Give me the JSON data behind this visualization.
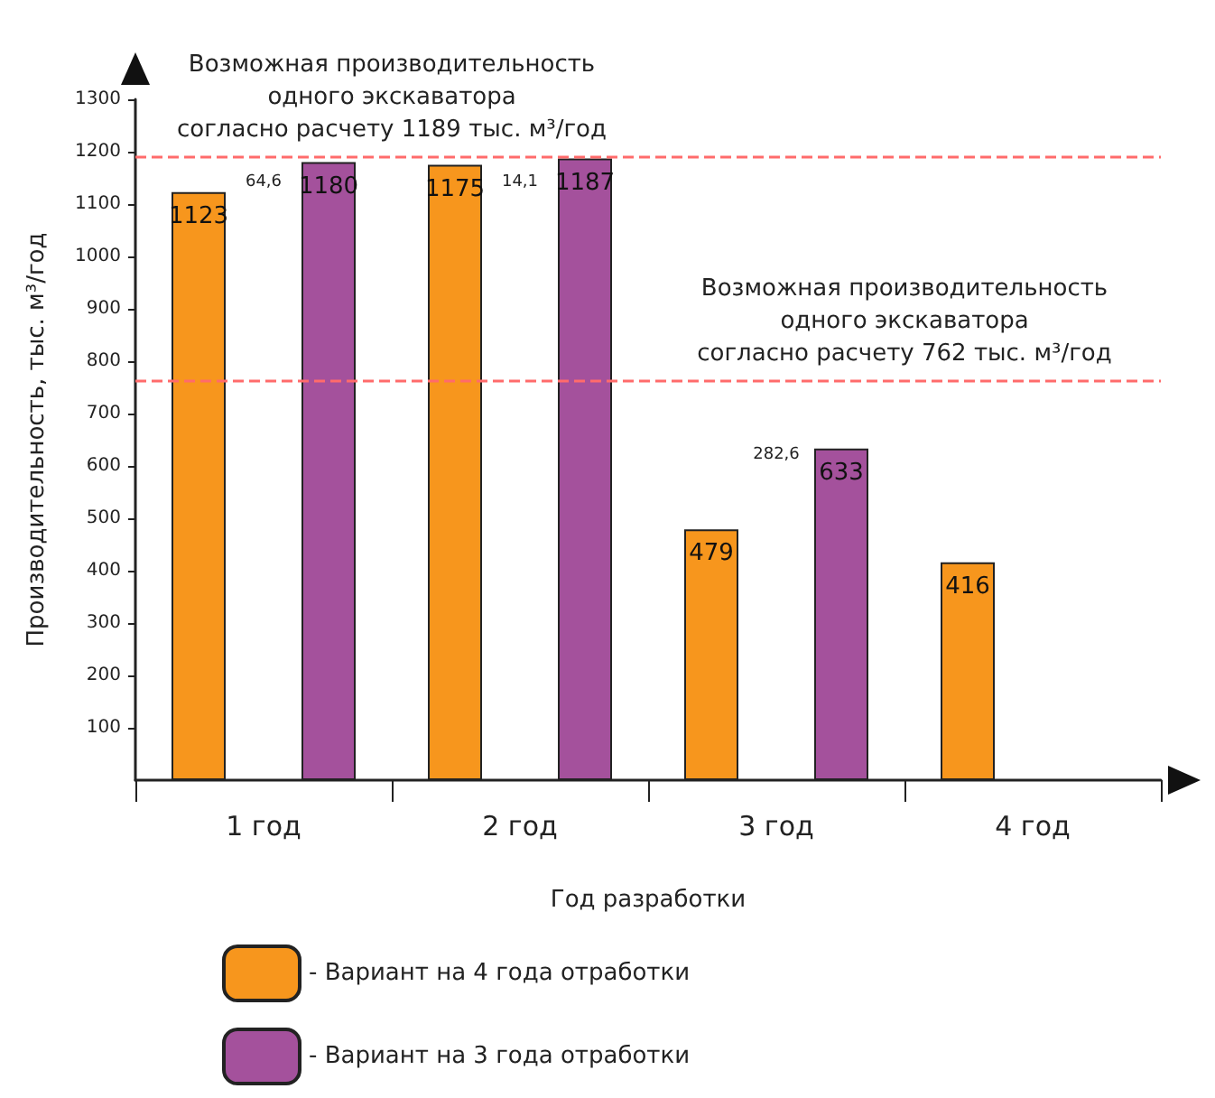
{
  "chart_data": {
    "type": "bar",
    "categories": [
      "1 год",
      "2 год",
      "3 год",
      "4 год"
    ],
    "xlabel": "Год разработки",
    "ylabel": "Производительность, тыс. м³/год",
    "series": [
      {
        "name": "- Вариант на 4 года отработки",
        "color": "#f7961d",
        "values": [
          1123,
          1175,
          479,
          416
        ]
      },
      {
        "name": "- Вариант на 3 года отработки",
        "color": "#a4519c",
        "values": [
          1180,
          1187,
          633,
          null
        ]
      }
    ],
    "ylim": [
      0,
      1300
    ],
    "yticks": [
      100,
      200,
      300,
      400,
      500,
      600,
      700,
      800,
      900,
      1000,
      1100,
      1200,
      1300
    ],
    "ref_lines": [
      {
        "axis": "y",
        "value": 1189,
        "label": "Возможная производительность\nодного экскаватора\nсогласно расчету 1189 тыс. м³/год",
        "color": "#ff6b6b",
        "line_style": "dashed"
      },
      {
        "axis": "y",
        "value": 762,
        "label": "Возможная производительность\nодного экскаватора\nсогласно расчету 762 тыс. м³/год",
        "color": "#ff6b6b",
        "line_style": "dashed"
      }
    ],
    "annotations": [
      "64,6",
      "14,1",
      "282,6"
    ],
    "data_labels": true,
    "grid": false,
    "legend": "bottom left"
  }
}
